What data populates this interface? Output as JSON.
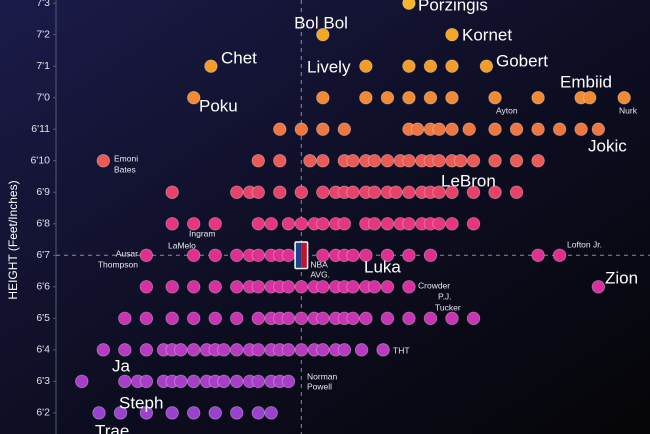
{
  "chart_data": {
    "type": "scatter",
    "ylabel": "HEIGHT (Feet/Inches)",
    "ylim": [
      73.33,
      87.1
    ],
    "xlim": [
      145,
      296
    ],
    "yticks": [
      {
        "value": 87,
        "label": "7'3"
      },
      {
        "value": 86,
        "label": "7'2"
      },
      {
        "value": 85,
        "label": "7'1"
      },
      {
        "value": 84,
        "label": "7'0"
      },
      {
        "value": 83,
        "label": "6'11"
      },
      {
        "value": 82,
        "label": "6'10"
      },
      {
        "value": 81,
        "label": "6'9"
      },
      {
        "value": 80,
        "label": "6'8"
      },
      {
        "value": 79,
        "label": "6'7"
      },
      {
        "value": 78,
        "label": "6'6"
      },
      {
        "value": 77,
        "label": "6'5"
      },
      {
        "value": 76,
        "label": "6'4"
      },
      {
        "value": 75,
        "label": "6'3"
      },
      {
        "value": 74,
        "label": "6'2"
      }
    ],
    "average": {
      "y": 79,
      "x": 215,
      "label": [
        "NBA",
        "AVG."
      ]
    },
    "rows": [
      {
        "y": 87,
        "color": "#f7b42c",
        "x": [
          240
        ]
      },
      {
        "y": 86,
        "color": "#f5a623",
        "x": [
          220,
          250
        ]
      },
      {
        "y": 85,
        "color": "#f39c28",
        "x": [
          194,
          230,
          240,
          245,
          250,
          258
        ]
      },
      {
        "y": 84,
        "color": "#f08a35",
        "x": [
          190,
          220,
          230,
          235,
          240,
          245,
          250,
          260,
          270,
          280,
          282,
          290
        ]
      },
      {
        "y": 83,
        "color": "#ee7640",
        "x": [
          210,
          215,
          220,
          225,
          240,
          242,
          245,
          247,
          250,
          254,
          260,
          265,
          270,
          275,
          280,
          284
        ]
      },
      {
        "y": 82,
        "color": "#ec5a55",
        "x": [
          169,
          205,
          210,
          217,
          220,
          225,
          227,
          230,
          232,
          235,
          238,
          240,
          243,
          245,
          247,
          250,
          252,
          255,
          260,
          265,
          270
        ]
      },
      {
        "y": 81,
        "color": "#e9426a",
        "x": [
          185,
          200,
          203,
          205,
          210,
          215,
          220,
          223,
          225,
          227,
          230,
          232,
          235,
          237,
          240,
          243,
          245,
          247,
          250,
          255,
          260,
          265
        ]
      },
      {
        "y": 80,
        "color": "#e6367d",
        "x": [
          185,
          190,
          195,
          205,
          208,
          212,
          215,
          218,
          220,
          223,
          225,
          230,
          232,
          235,
          238,
          240,
          243,
          245,
          247,
          250,
          255
        ]
      },
      {
        "y": 79,
        "color": "#e0308f",
        "x": [
          179,
          190,
          195,
          200,
          203,
          205,
          208,
          210,
          212,
          215,
          220,
          223,
          225,
          227,
          230,
          235,
          240,
          245,
          270,
          275
        ]
      },
      {
        "y": 78,
        "color": "#d830a0",
        "x": [
          179,
          185,
          190,
          195,
          200,
          203,
          205,
          208,
          210,
          212,
          215,
          218,
          220,
          223,
          225,
          227,
          230,
          232,
          235,
          240,
          284
        ]
      },
      {
        "y": 77,
        "color": "#c834b2",
        "x": [
          174,
          179,
          185,
          190,
          195,
          200,
          205,
          208,
          210,
          212,
          215,
          218,
          220,
          223,
          225,
          227,
          230,
          235,
          240,
          245,
          250,
          255
        ]
      },
      {
        "y": 76,
        "color": "#b83ac0",
        "x": [
          169,
          174,
          179,
          183,
          185,
          187,
          190,
          193,
          195,
          197,
          200,
          203,
          205,
          208,
          210,
          212,
          215,
          218,
          220,
          223,
          225,
          229,
          234
        ]
      },
      {
        "y": 75,
        "color": "#a83ec8",
        "x": [
          164,
          174,
          177,
          179,
          183,
          185,
          187,
          190,
          193,
          195,
          197,
          200,
          203,
          205,
          208,
          210,
          212
        ]
      },
      {
        "y": 74,
        "color": "#9a42cf",
        "x": [
          168,
          173,
          179,
          185,
          190,
          195,
          200,
          205,
          208
        ]
      }
    ],
    "annotations": {
      "porzingis": "Porzingis",
      "bolbol": "Bol Bol",
      "kornet": "Kornet",
      "chet": "Chet",
      "lively": "Lively",
      "gobert": "Gobert",
      "embiid": "Embiid",
      "poku": "Poku",
      "jokic": "Jokic",
      "lebron": "LeBron",
      "luka": "Luka",
      "zion": "Zion",
      "ja": "Ja",
      "steph": "Steph",
      "trae": "Trae",
      "ayton": "Ayton",
      "nurk": "Nurk",
      "emoni": [
        "Emoni",
        "Bates"
      ],
      "ingram": "Ingram",
      "lamelo": "LaMelo",
      "ausar": [
        "Ausar",
        "Thompson"
      ],
      "lofton": "Lofton Jr.",
      "crowder": "Crowder",
      "tucker": [
        "P.J.",
        "Tucker"
      ],
      "tht": "THT",
      "powell": [
        "Norman",
        "Powell"
      ]
    }
  }
}
